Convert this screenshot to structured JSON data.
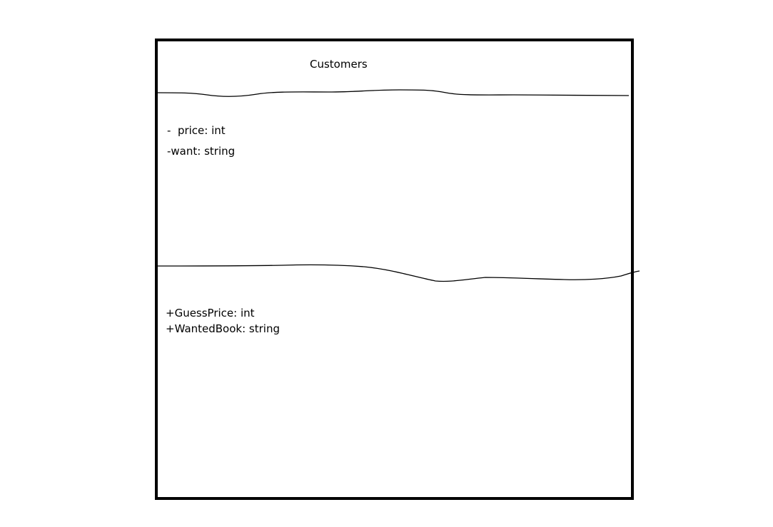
{
  "diagram": {
    "class_name": "Customers",
    "attributes": [
      "-  price: int",
      "-want: string"
    ],
    "operations": [
      "+GuessPrice: int",
      "+WantedBook: string"
    ]
  }
}
